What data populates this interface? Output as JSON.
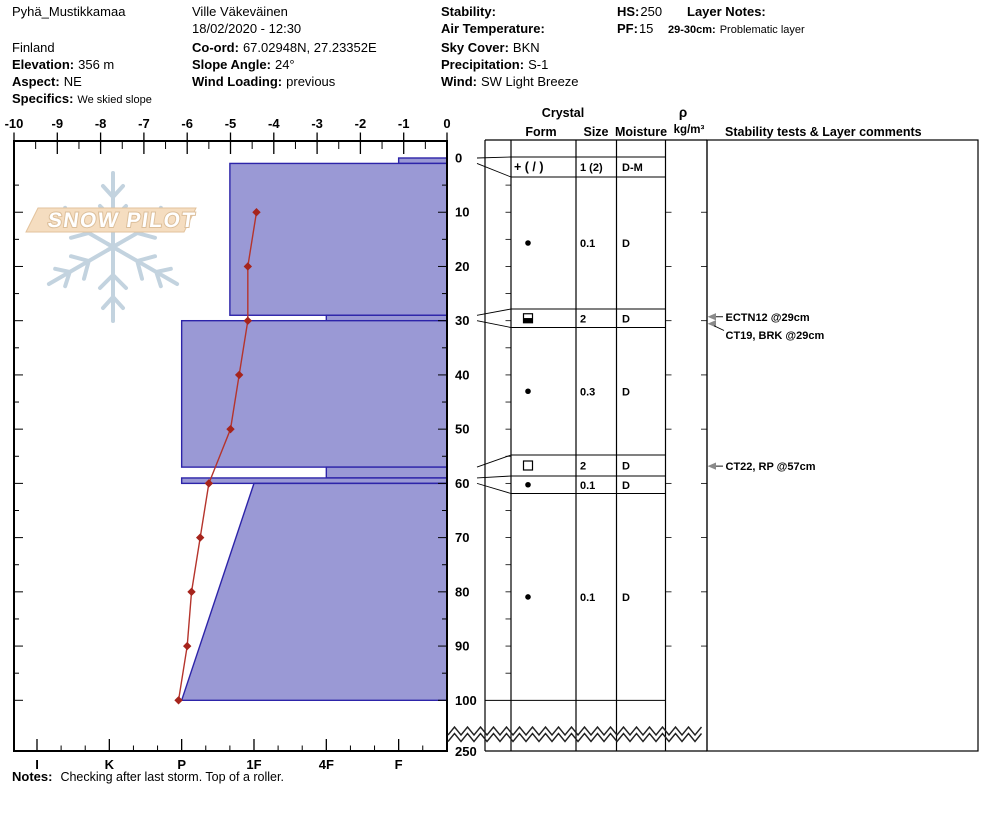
{
  "header": {
    "site_name": "Pyhä_Mustikkamaa",
    "country": "Finland",
    "elevation_label": "Elevation:",
    "elevation_value": "356 m",
    "aspect_label": "Aspect:",
    "aspect_value": "NE",
    "specifics_label": "Specifics:",
    "specifics_value": "We skied slope",
    "observer": "Ville Väkeväinen",
    "datetime": "18/02/2020 - 12:30",
    "coord_label": "Co-ord:",
    "coord_value": "67.02948N, 27.23352E",
    "slope_angle_label": "Slope Angle:",
    "slope_angle_value": "24°",
    "wind_loading_label": "Wind Loading:",
    "wind_loading_value": "previous",
    "stability_label": "Stability:",
    "stability_value": "",
    "air_temp_label": "Air Temperature:",
    "air_temp_value": "",
    "sky_cover_label": "Sky Cover:",
    "sky_cover_value": "BKN",
    "precip_label": "Precipitation:",
    "precip_value": "S-1",
    "wind_label": "Wind:",
    "wind_value": "SW Light Breeze",
    "hs_label": "HS:",
    "hs_value": "250",
    "pf_label": "PF:",
    "pf_value": "15",
    "layer_notes_label": "Layer Notes:",
    "layer_note_depth": "29-30cm:",
    "layer_note_text": "Problematic layer"
  },
  "logo": {
    "text": "SNOW PILOT"
  },
  "notes": {
    "label": "Notes:",
    "text": "Checking after last storm. Top of a roller."
  },
  "table_headers": {
    "crystal": "Crystal",
    "form": "Form",
    "size": "Size",
    "moisture": "Moisture",
    "rho": "ρ",
    "rho_units": "kg/m³",
    "comments": "Stability tests & Layer comments"
  },
  "chart_data": {
    "type": "snow-profile",
    "temp_axis_labels": [
      "-10",
      "-9",
      "-8",
      "-7",
      "-6",
      "-5",
      "-4",
      "-3",
      "-2",
      "-1",
      "0"
    ],
    "temp_axis_range": [
      -10,
      0
    ],
    "hardness_labels": [
      "I",
      "K",
      "P",
      "1F",
      "4F",
      "F"
    ],
    "depth_labels": [
      "0",
      "10",
      "20",
      "30",
      "40",
      "50",
      "60",
      "70",
      "80",
      "90",
      "100"
    ],
    "depth_bottom_label": "250",
    "total_depth_cm": 250,
    "temperature_profile": [
      {
        "depth_cm": 10,
        "temp_c": -4.4
      },
      {
        "depth_cm": 20,
        "temp_c": -4.6
      },
      {
        "depth_cm": 30,
        "temp_c": -4.6
      },
      {
        "depth_cm": 40,
        "temp_c": -4.8
      },
      {
        "depth_cm": 50,
        "temp_c": -5.0
      },
      {
        "depth_cm": 60,
        "temp_c": -5.5
      },
      {
        "depth_cm": 70,
        "temp_c": -5.7
      },
      {
        "depth_cm": 80,
        "temp_c": -5.9
      },
      {
        "depth_cm": 90,
        "temp_c": -6.0
      },
      {
        "depth_cm": 100,
        "temp_c": -6.2
      }
    ],
    "layers": [
      {
        "top_cm": 0,
        "bottom_cm": 1,
        "hardness": "F",
        "form": "precip-plus-slash",
        "form_text": "+ ( / )",
        "size_mm": "1 (2)",
        "moisture": "D-M"
      },
      {
        "top_cm": 1,
        "bottom_cm": 29,
        "hardness": "1F+",
        "form": "round-dot",
        "form_text": "",
        "size_mm": "0.1",
        "moisture": "D"
      },
      {
        "top_cm": 29,
        "bottom_cm": 30,
        "hardness": "4F",
        "form": "square-bottom-filled",
        "form_text": "",
        "size_mm": "2",
        "moisture": "D"
      },
      {
        "top_cm": 30,
        "bottom_cm": 57,
        "hardness": "P",
        "form": "round-dot",
        "form_text": "",
        "size_mm": "0.3",
        "moisture": "D"
      },
      {
        "top_cm": 57,
        "bottom_cm": 59,
        "hardness": "4F",
        "form": "square-open",
        "form_text": "",
        "size_mm": "2",
        "moisture": "D"
      },
      {
        "top_cm": 59,
        "bottom_cm": 60,
        "hardness": "P",
        "form": "round-dot",
        "form_text": "",
        "size_mm": "0.1",
        "moisture": "D"
      },
      {
        "top_cm": 60,
        "bottom_cm": 100,
        "hardness": "1F",
        "hardness_bottom": "P",
        "form": "round-dot",
        "form_text": "",
        "size_mm": "0.1",
        "moisture": "D"
      }
    ],
    "stability_tests": [
      {
        "text": "ECTN12 @29cm",
        "depth_cm": 29
      },
      {
        "text": "CT19, BRK @29cm",
        "depth_cm": 29
      },
      {
        "text": "CT22, RP @57cm",
        "depth_cm": 57
      }
    ],
    "colors": {
      "layer_fill": "#9a99d5",
      "layer_border": "#2d24a9",
      "temp_line": "#b5342c",
      "temp_marker": "#a6241c",
      "logo_band_fill": "#f5ddc0",
      "logo_band_border": "#e2c29c",
      "logo_text_stroke": "#dcbf9b",
      "snowflake": "#c3d3df",
      "arrow_gray": "#8a8a8a"
    }
  }
}
